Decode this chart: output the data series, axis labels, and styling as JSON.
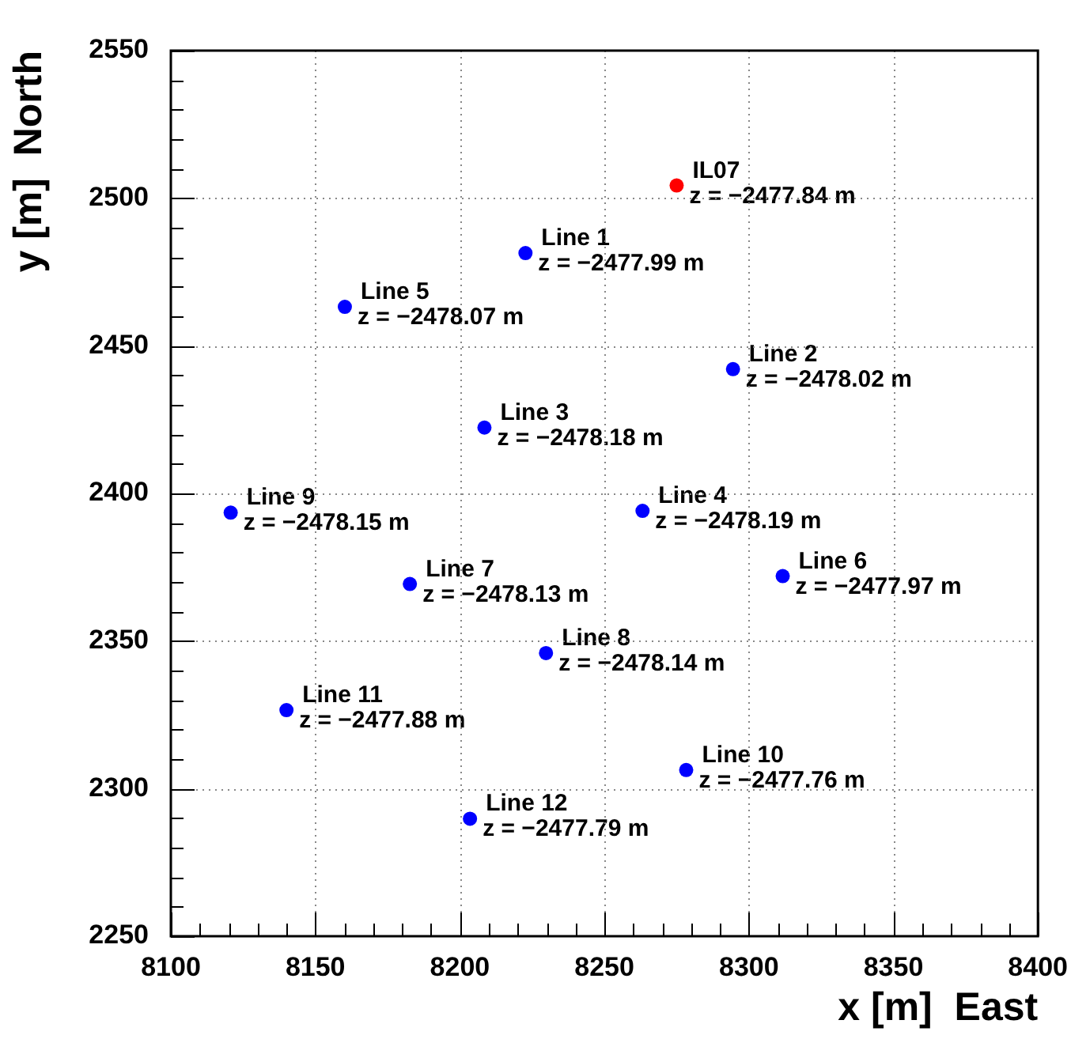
{
  "chart_data": {
    "type": "scatter",
    "xlabel": "x [m]  East",
    "ylabel": "y [m]  North",
    "x": [
      8275.0,
      8222.7,
      8160.2,
      8294.5,
      8208.5,
      8120.7,
      8263.2,
      8182.7,
      8311.7,
      8229.8,
      8140.0,
      8278.3,
      8203.5
    ],
    "values": [
      2504.3,
      2481.4,
      2463.2,
      2442.1,
      2422.3,
      2393.5,
      2394.1,
      2369.3,
      2372.0,
      2345.9,
      2326.6,
      2306.3,
      2289.8
    ],
    "colors": [
      "#ff0000",
      "#0000ff",
      "#0000ff",
      "#0000ff",
      "#0000ff",
      "#0000ff",
      "#0000ff",
      "#0000ff",
      "#0000ff",
      "#0000ff",
      "#0000ff",
      "#0000ff",
      "#0000ff"
    ],
    "marker": "circle",
    "grid": true,
    "legend": false,
    "xlim": [
      8100,
      8400
    ],
    "ylim": [
      2250,
      2550
    ],
    "xticks": [
      8100,
      {
        "value": 8110,
        "label": null
      },
      {
        "value": 8120,
        "label": null
      },
      {
        "value": 8130,
        "label": null
      },
      {
        "value": 8140,
        "label": null
      },
      8150,
      {
        "value": 8160,
        "label": null
      },
      {
        "value": 8170,
        "label": null
      },
      {
        "value": 8180,
        "label": null
      },
      {
        "value": 8190,
        "label": null
      },
      8200,
      {
        "value": 8210,
        "label": null
      },
      {
        "value": 8220,
        "label": null
      },
      {
        "value": 8230,
        "label": null
      },
      {
        "value": 8240,
        "label": null
      },
      8250,
      {
        "value": 8260,
        "label": null
      },
      {
        "value": 8270,
        "label": null
      },
      {
        "value": 8280,
        "label": null
      },
      {
        "value": 8290,
        "label": null
      },
      8300,
      {
        "value": 8310,
        "label": null
      },
      {
        "value": 8320,
        "label": null
      },
      {
        "value": 8330,
        "label": null
      },
      {
        "value": 8340,
        "label": null
      },
      8350,
      {
        "value": 8360,
        "label": null
      },
      {
        "value": 8370,
        "label": null
      },
      {
        "value": 8380,
        "label": null
      },
      {
        "value": 8390,
        "label": null
      },
      8400
    ],
    "yticks": [
      2250,
      {
        "value": 2260,
        "label": null
      },
      {
        "value": 2270,
        "label": null
      },
      {
        "value": 2280,
        "label": null
      },
      {
        "value": 2290,
        "label": null
      },
      2300,
      {
        "value": 2310,
        "label": null
      },
      {
        "value": 2320,
        "label": null
      },
      {
        "value": 2330,
        "label": null
      },
      {
        "value": 2340,
        "label": null
      },
      2350,
      {
        "value": 2360,
        "label": null
      },
      {
        "value": 2370,
        "label": null
      },
      {
        "value": 2380,
        "label": null
      },
      {
        "value": 2390,
        "label": null
      },
      2400,
      {
        "value": 2410,
        "label": null
      },
      {
        "value": 2420,
        "label": null
      },
      {
        "value": 2430,
        "label": null
      },
      {
        "value": 2440,
        "label": null
      },
      2450,
      {
        "value": 2460,
        "label": null
      },
      {
        "value": 2470,
        "label": null
      },
      {
        "value": 2480,
        "label": null
      },
      {
        "value": 2490,
        "label": null
      },
      2500,
      {
        "value": 2510,
        "label": null
      },
      {
        "value": 2520,
        "label": null
      },
      {
        "value": 2530,
        "label": null
      },
      {
        "value": 2540,
        "label": null
      },
      2550
    ],
    "annotations": [
      {
        "text": "IL07\nz = −2477.84 m",
        "x": 8275.0,
        "y": 2504.3
      },
      {
        "text": "Line 1\nz = −2477.99 m",
        "x": 8222.7,
        "y": 2481.4
      },
      {
        "text": "Line 5\nz = −2478.07 m",
        "x": 8160.2,
        "y": 2463.2
      },
      {
        "text": "Line 2\nz = −2478.02 m",
        "x": 8294.5,
        "y": 2442.1
      },
      {
        "text": "Line 3\nz = −2478.18 m",
        "x": 8208.5,
        "y": 2422.3
      },
      {
        "text": "Line 9\nz = −2478.15 m",
        "x": 8120.7,
        "y": 2393.5
      },
      {
        "text": "Line 4\nz = −2478.19 m",
        "x": 8263.2,
        "y": 2394.1
      },
      {
        "text": "Line 7\nz = −2478.13 m",
        "x": 8182.7,
        "y": 2369.3
      },
      {
        "text": "Line 6\nz = −2477.97 m",
        "x": 8311.7,
        "y": 2372.0
      },
      {
        "text": "Line 8\nz = −2478.14 m",
        "x": 8229.8,
        "y": 2345.9
      },
      {
        "text": "Line 11\nz = −2477.88 m",
        "x": 8140.0,
        "y": 2326.6
      },
      {
        "text": "Line 10\nz = −2477.76 m",
        "x": 8278.3,
        "y": 2306.3
      },
      {
        "text": "Line 12\nz = −2477.79 m",
        "x": 8203.5,
        "y": 2289.8
      }
    ]
  }
}
